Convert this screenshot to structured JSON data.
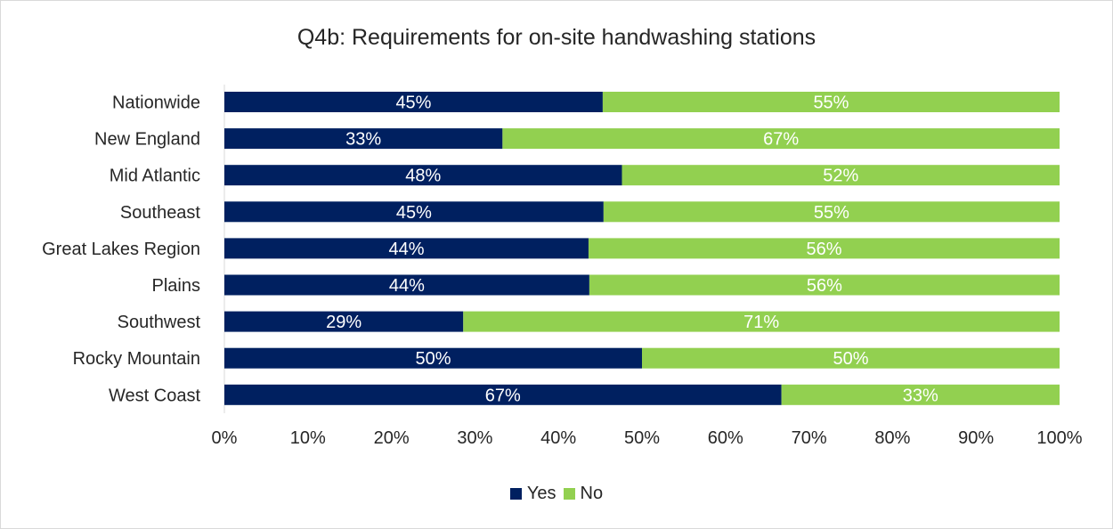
{
  "chart_data": {
    "type": "bar",
    "orientation": "horizontal",
    "stacked": "percent",
    "title": "Q4b: Requirements for on-site handwashing stations",
    "categories": [
      "Nationwide",
      "New England",
      "Mid Atlantic",
      "Southeast",
      "Great Lakes Region",
      "Plains",
      "Southwest",
      "Rocky Mountain",
      "West Coast"
    ],
    "series": [
      {
        "name": "Yes",
        "color": "#002060",
        "values": [
          45.3,
          33.3,
          47.6,
          45.4,
          43.6,
          43.7,
          28.6,
          50.0,
          66.7
        ],
        "labels": [
          "45%",
          "33%",
          "48%",
          "45%",
          "44%",
          "44%",
          "29%",
          "50%",
          "67%"
        ]
      },
      {
        "name": "No",
        "color": "#92d050",
        "values": [
          54.7,
          66.7,
          52.4,
          54.6,
          56.4,
          56.3,
          71.4,
          50.0,
          33.3
        ],
        "labels": [
          "55%",
          "67%",
          "52%",
          "55%",
          "56%",
          "56%",
          "71%",
          "50%",
          "33%"
        ]
      }
    ],
    "xlim": [
      0,
      100
    ],
    "x_ticks": [
      "0%",
      "10%",
      "20%",
      "30%",
      "40%",
      "50%",
      "60%",
      "70%",
      "80%",
      "90%",
      "100%"
    ],
    "grid": false,
    "legend_position": "bottom"
  }
}
